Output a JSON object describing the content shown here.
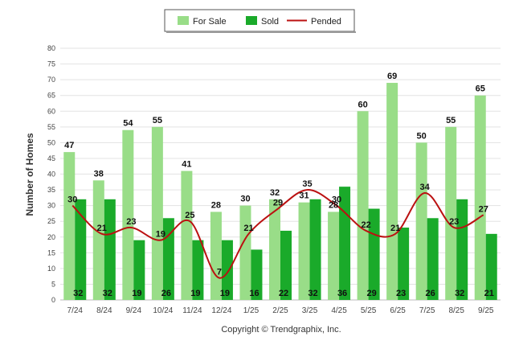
{
  "chart_data": {
    "type": "bar",
    "categories": [
      "7/24",
      "8/24",
      "9/24",
      "10/24",
      "11/24",
      "12/24",
      "1/25",
      "2/25",
      "3/25",
      "4/25",
      "5/25",
      "6/25",
      "7/25",
      "8/25",
      "9/25"
    ],
    "series": [
      {
        "name": "For Sale",
        "type": "bar",
        "color": "#99dd88",
        "values": [
          47,
          38,
          54,
          55,
          41,
          28,
          30,
          32,
          31,
          28,
          60,
          69,
          50,
          55,
          65
        ]
      },
      {
        "name": "Sold",
        "type": "bar",
        "color": "#1aaa2a",
        "values": [
          32,
          32,
          19,
          26,
          19,
          19,
          16,
          22,
          32,
          36,
          29,
          23,
          26,
          32,
          21
        ]
      },
      {
        "name": "Pended",
        "type": "line",
        "color": "#bb1111",
        "values": [
          30,
          21,
          23,
          19,
          25,
          7,
          21,
          29,
          35,
          30,
          22,
          21,
          34,
          23,
          27
        ]
      }
    ],
    "ylabel": "Number of Homes",
    "ylim": [
      0,
      80
    ],
    "yticks": [
      0,
      5,
      10,
      15,
      20,
      25,
      30,
      35,
      40,
      45,
      50,
      55,
      60,
      65,
      70,
      75,
      80
    ],
    "legend_position": "top-center",
    "grid": true
  },
  "footer": {
    "copyright": "Copyright © Trendgraphix, Inc."
  }
}
